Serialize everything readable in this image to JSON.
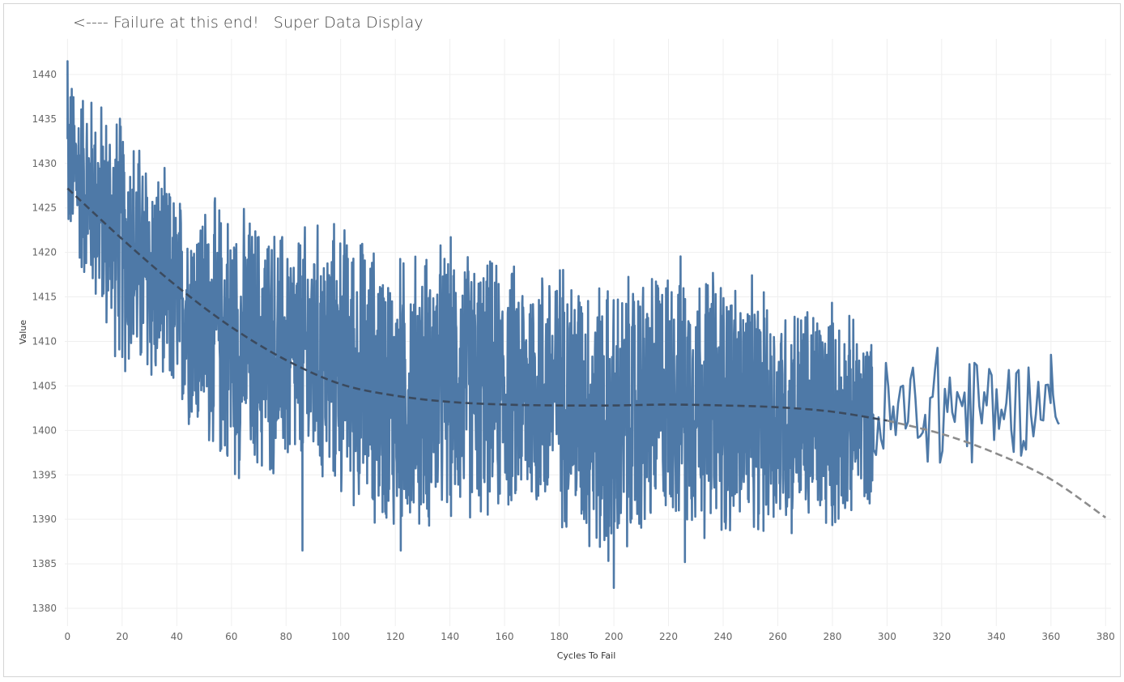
{
  "title": {
    "left": "<---- Failure at this end!",
    "right": "Super Data Display"
  },
  "chart_data": {
    "type": "line",
    "xlabel": "Cycles To Fail",
    "ylabel": "Value",
    "xlim": [
      -1,
      382
    ],
    "ylim": [
      1378,
      1444
    ],
    "x_ticks": [
      0,
      20,
      40,
      60,
      80,
      100,
      120,
      140,
      160,
      180,
      200,
      220,
      240,
      260,
      280,
      300,
      320,
      340,
      360,
      380
    ],
    "y_ticks": [
      1380,
      1385,
      1390,
      1395,
      1400,
      1405,
      1410,
      1415,
      1420,
      1425,
      1430,
      1435,
      1440
    ],
    "grid": true,
    "series": [
      {
        "style": "noisy-line",
        "color": "#4e79a7",
        "x_range": [
          0,
          363
        ],
        "approx_envelope": {
          "x": [
            0,
            20,
            40,
            60,
            80,
            100,
            120,
            140,
            160,
            180,
            200,
            220,
            240,
            260,
            280,
            300,
            320,
            340,
            360,
            363
          ],
          "upper": [
            1441,
            1437,
            1428,
            1427,
            1424,
            1425,
            1421,
            1423,
            1420,
            1421,
            1418,
            1421,
            1420,
            1416,
            1416,
            1409,
            1413,
            1410,
            1408,
            1401
          ],
          "lower": [
            1420,
            1405,
            1401,
            1393,
            1393,
            1391,
            1386,
            1388,
            1389,
            1388,
            1382,
            1388,
            1386,
            1387,
            1387,
            1393,
            1393,
            1395,
            1399,
            1400
          ]
        },
        "notable_points": [
          {
            "x": 0,
            "y": 1441.5
          },
          {
            "x": 86,
            "y": 1386.5
          },
          {
            "x": 122,
            "y": 1386.5
          },
          {
            "x": 200,
            "y": 1382.3
          },
          {
            "x": 226,
            "y": 1385.2
          },
          {
            "x": 360,
            "y": 1408.5
          },
          {
            "x": 363,
            "y": 1400.7
          }
        ]
      },
      {
        "style": "dashed-trend",
        "color": "#3b4a5e",
        "forecast_color": "#8c8c8c",
        "forecast_from": 300,
        "x": [
          0,
          20,
          40,
          60,
          80,
          100,
          120,
          140,
          160,
          180,
          200,
          220,
          240,
          260,
          280,
          300,
          320,
          340,
          360,
          380
        ],
        "values": [
          1427.2,
          1421.5,
          1416.2,
          1411.6,
          1407.9,
          1405.2,
          1403.9,
          1403.2,
          1402.9,
          1402.8,
          1402.8,
          1402.9,
          1402.8,
          1402.6,
          1402.1,
          1401.1,
          1399.6,
          1397.4,
          1394.5,
          1390.2
        ]
      }
    ]
  }
}
